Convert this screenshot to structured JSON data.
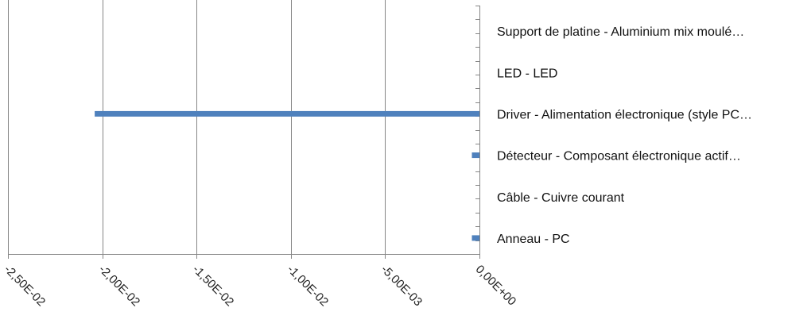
{
  "chart_data": {
    "type": "bar",
    "orientation": "horizontal",
    "categories": [
      "Support de platine - Aluminium mix moulé…",
      "LED - LED",
      "Driver - Alimentation électronique (style PC…",
      "Détecteur - Composant électronique actif…",
      "Câble - Cuivre courant",
      "Anneau - PC"
    ],
    "values": [
      0,
      0,
      -0.0204,
      -0.0004,
      0,
      -0.0004
    ],
    "xlim": [
      -0.025,
      0
    ],
    "x_ticks": [
      -0.025,
      -0.02,
      -0.015,
      -0.01,
      -0.005,
      0
    ],
    "x_tick_labels": [
      "-2,50E-02",
      "-2,00E-02",
      "-1,50E-02",
      "-1,00E-02",
      "-5,00E-03",
      "0,00E+00"
    ],
    "grid": "vertical",
    "legend": "none",
    "bar_color": "#4f81bd",
    "grid_color": "#868686"
  }
}
